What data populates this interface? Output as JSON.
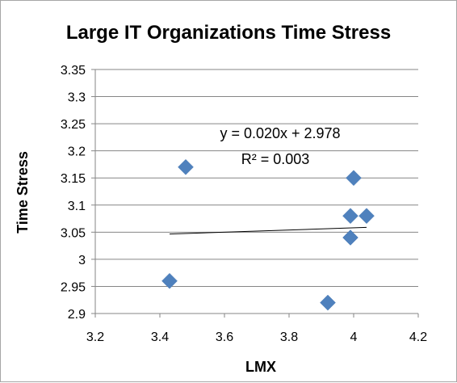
{
  "chart_data": {
    "type": "scatter",
    "title": "Large IT Organizations Time Stress",
    "xlabel": "LMX",
    "ylabel": "Time Stress",
    "xlim": [
      3.2,
      4.2
    ],
    "ylim": [
      2.9,
      3.35
    ],
    "x_ticks": [
      "3.2",
      "3.4",
      "3.6",
      "3.8",
      "4",
      "4.2"
    ],
    "y_ticks": [
      "3.35",
      "3.3",
      "3.25",
      "3.2",
      "3.15",
      "3.1",
      "3.05",
      "3",
      "2.95",
      "2.9"
    ],
    "grid": "horizontal",
    "marker": "diamond",
    "marker_color": "#4f81bd",
    "points": [
      {
        "x": 3.43,
        "y": 2.96
      },
      {
        "x": 3.48,
        "y": 3.17
      },
      {
        "x": 3.92,
        "y": 2.92
      },
      {
        "x": 3.99,
        "y": 3.04
      },
      {
        "x": 3.99,
        "y": 3.08
      },
      {
        "x": 4.0,
        "y": 3.15
      },
      {
        "x": 4.04,
        "y": 3.08
      }
    ],
    "trendline": {
      "x_range": [
        3.43,
        4.04
      ],
      "slope": 0.02,
      "intercept": 2.978,
      "equation": "y = 0.020x + 2.978",
      "r_squared": "R² = 0.003"
    }
  }
}
